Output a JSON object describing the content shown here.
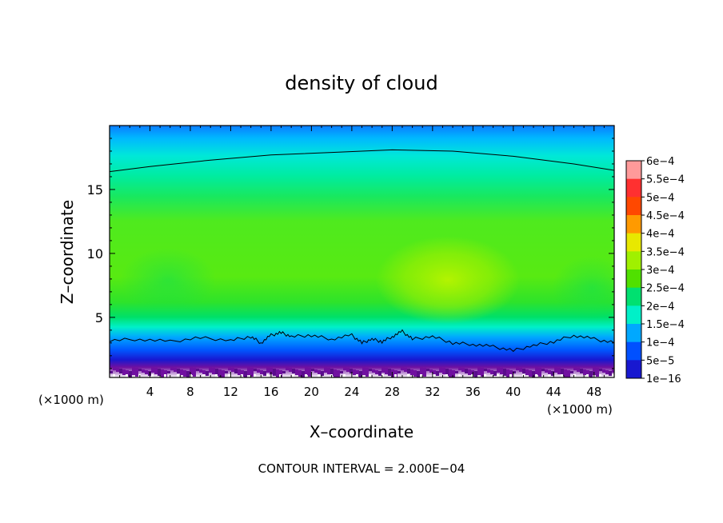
{
  "chart_data": {
    "type": "heatmap",
    "title": "density of cloud",
    "xlabel": "X–coordinate",
    "ylabel": "Z–coordinate",
    "x_unit": "(×1000 m)",
    "y_unit": "(×1000 m)",
    "x_ticks": [
      "4",
      "8",
      "12",
      "16",
      "20",
      "24",
      "28",
      "32",
      "36",
      "40",
      "44",
      "48"
    ],
    "y_ticks": [
      "5",
      "10",
      "15"
    ],
    "xlim": [
      0,
      50
    ],
    "ylim": [
      0.3,
      20
    ],
    "footer": "CONTOUR INTERVAL = 2.000E−04",
    "colorbar": {
      "labels": [
        "6e−4",
        "5.5e−4",
        "5e−4",
        "4.5e−4",
        "4e−4",
        "3.5e−4",
        "3e−4",
        "2.5e−4",
        "2e−4",
        "1.5e−4",
        "1e−4",
        "5e−5",
        "1e−16"
      ],
      "colors": [
        "#ff9a9a",
        "#ff3030",
        "#ff4800",
        "#ff9a00",
        "#e8e800",
        "#a0f000",
        "#50e000",
        "#00e070",
        "#00f0c8",
        "#00a8ff",
        "#0050ff",
        "#1818d0",
        "#7010a0"
      ]
    },
    "field_description_levels": {
      "top_band_z_18_20": "1.5e-4 to 2e-4",
      "upper_z_15_18": "2e-4 to 2.5e-4",
      "middle_z_4_15": "3e-4 to 3.5e-4",
      "local_max_near_x_34_z_8": "3.5e-4 to 4e-4",
      "lower_z_1_3": "5e-5 to 1.5e-4",
      "bottom_z_below_1": "1e-16 to 5e-5"
    },
    "contour_value": 0.0002,
    "contour_upper": [
      [
        0,
        16.4
      ],
      [
        4,
        16.8
      ],
      [
        10,
        17.3
      ],
      [
        16,
        17.7
      ],
      [
        22,
        17.9
      ],
      [
        28,
        18.1
      ],
      [
        34,
        18.0
      ],
      [
        40,
        17.6
      ],
      [
        46,
        17.0
      ],
      [
        50,
        16.5
      ]
    ],
    "contour_lower": [
      [
        0,
        3.2
      ],
      [
        3,
        3.3
      ],
      [
        6,
        3.1
      ],
      [
        9,
        3.4
      ],
      [
        12,
        3.2
      ],
      [
        14,
        3.5
      ],
      [
        15,
        3.0
      ],
      [
        16,
        3.6
      ],
      [
        17,
        3.8
      ],
      [
        18,
        3.5
      ],
      [
        20,
        3.6
      ],
      [
        22,
        3.3
      ],
      [
        24,
        3.6
      ],
      [
        25,
        3.0
      ],
      [
        26,
        3.3
      ],
      [
        27,
        3.1
      ],
      [
        28,
        3.5
      ],
      [
        29,
        3.9
      ],
      [
        30,
        3.3
      ],
      [
        32,
        3.5
      ],
      [
        34,
        3.0
      ],
      [
        36,
        2.9
      ],
      [
        38,
        2.7
      ],
      [
        40,
        2.4
      ],
      [
        42,
        2.8
      ],
      [
        44,
        3.1
      ],
      [
        46,
        3.6
      ],
      [
        48,
        3.3
      ],
      [
        50,
        3.0
      ]
    ]
  }
}
